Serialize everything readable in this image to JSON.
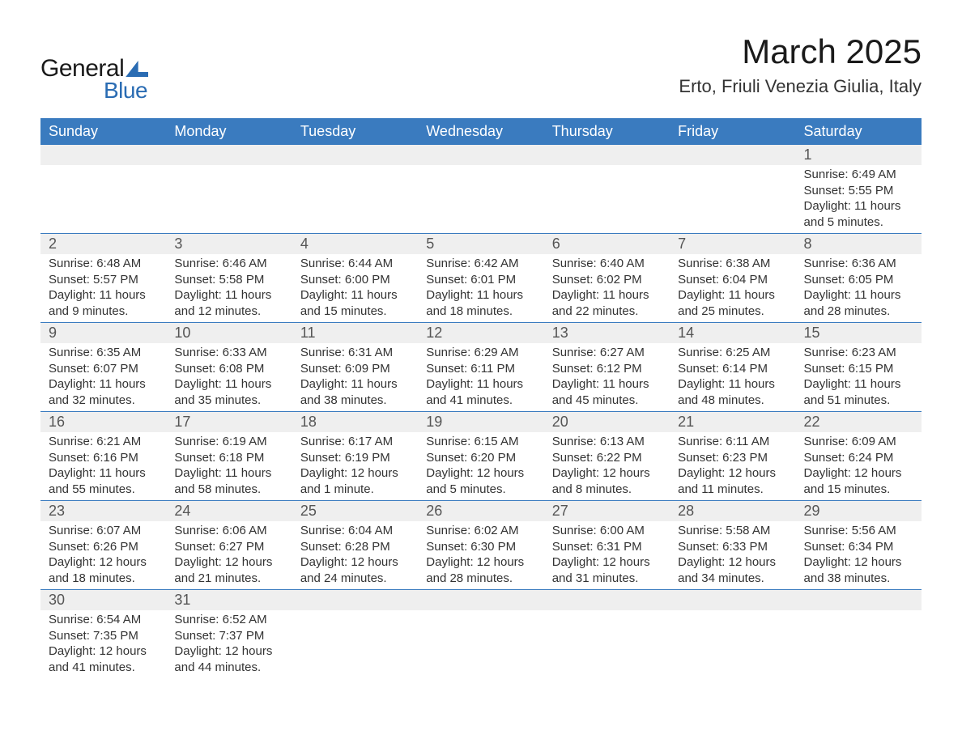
{
  "brand": {
    "word1": "General",
    "word2": "Blue",
    "accent_color": "#2a6cb3"
  },
  "title": "March 2025",
  "location": "Erto, Friuli Venezia Giulia, Italy",
  "colors": {
    "header_bg": "#3a7bbf",
    "header_text": "#ffffff",
    "daynum_bg": "#efefef",
    "row_divider": "#3a7bbf",
    "text": "#333333",
    "page_bg": "#ffffff"
  },
  "fonts": {
    "title_size_pt": 42,
    "location_size_pt": 22,
    "th_size_pt": 18,
    "daynum_size_pt": 18,
    "body_size_pt": 15
  },
  "dow": [
    "Sunday",
    "Monday",
    "Tuesday",
    "Wednesday",
    "Thursday",
    "Friday",
    "Saturday"
  ],
  "weeks": [
    [
      null,
      null,
      null,
      null,
      null,
      null,
      {
        "d": "1",
        "sunrise": "Sunrise: 6:49 AM",
        "sunset": "Sunset: 5:55 PM",
        "daylight": "Daylight: 11 hours and 5 minutes."
      }
    ],
    [
      {
        "d": "2",
        "sunrise": "Sunrise: 6:48 AM",
        "sunset": "Sunset: 5:57 PM",
        "daylight": "Daylight: 11 hours and 9 minutes."
      },
      {
        "d": "3",
        "sunrise": "Sunrise: 6:46 AM",
        "sunset": "Sunset: 5:58 PM",
        "daylight": "Daylight: 11 hours and 12 minutes."
      },
      {
        "d": "4",
        "sunrise": "Sunrise: 6:44 AM",
        "sunset": "Sunset: 6:00 PM",
        "daylight": "Daylight: 11 hours and 15 minutes."
      },
      {
        "d": "5",
        "sunrise": "Sunrise: 6:42 AM",
        "sunset": "Sunset: 6:01 PM",
        "daylight": "Daylight: 11 hours and 18 minutes."
      },
      {
        "d": "6",
        "sunrise": "Sunrise: 6:40 AM",
        "sunset": "Sunset: 6:02 PM",
        "daylight": "Daylight: 11 hours and 22 minutes."
      },
      {
        "d": "7",
        "sunrise": "Sunrise: 6:38 AM",
        "sunset": "Sunset: 6:04 PM",
        "daylight": "Daylight: 11 hours and 25 minutes."
      },
      {
        "d": "8",
        "sunrise": "Sunrise: 6:36 AM",
        "sunset": "Sunset: 6:05 PM",
        "daylight": "Daylight: 11 hours and 28 minutes."
      }
    ],
    [
      {
        "d": "9",
        "sunrise": "Sunrise: 6:35 AM",
        "sunset": "Sunset: 6:07 PM",
        "daylight": "Daylight: 11 hours and 32 minutes."
      },
      {
        "d": "10",
        "sunrise": "Sunrise: 6:33 AM",
        "sunset": "Sunset: 6:08 PM",
        "daylight": "Daylight: 11 hours and 35 minutes."
      },
      {
        "d": "11",
        "sunrise": "Sunrise: 6:31 AM",
        "sunset": "Sunset: 6:09 PM",
        "daylight": "Daylight: 11 hours and 38 minutes."
      },
      {
        "d": "12",
        "sunrise": "Sunrise: 6:29 AM",
        "sunset": "Sunset: 6:11 PM",
        "daylight": "Daylight: 11 hours and 41 minutes."
      },
      {
        "d": "13",
        "sunrise": "Sunrise: 6:27 AM",
        "sunset": "Sunset: 6:12 PM",
        "daylight": "Daylight: 11 hours and 45 minutes."
      },
      {
        "d": "14",
        "sunrise": "Sunrise: 6:25 AM",
        "sunset": "Sunset: 6:14 PM",
        "daylight": "Daylight: 11 hours and 48 minutes."
      },
      {
        "d": "15",
        "sunrise": "Sunrise: 6:23 AM",
        "sunset": "Sunset: 6:15 PM",
        "daylight": "Daylight: 11 hours and 51 minutes."
      }
    ],
    [
      {
        "d": "16",
        "sunrise": "Sunrise: 6:21 AM",
        "sunset": "Sunset: 6:16 PM",
        "daylight": "Daylight: 11 hours and 55 minutes."
      },
      {
        "d": "17",
        "sunrise": "Sunrise: 6:19 AM",
        "sunset": "Sunset: 6:18 PM",
        "daylight": "Daylight: 11 hours and 58 minutes."
      },
      {
        "d": "18",
        "sunrise": "Sunrise: 6:17 AM",
        "sunset": "Sunset: 6:19 PM",
        "daylight": "Daylight: 12 hours and 1 minute."
      },
      {
        "d": "19",
        "sunrise": "Sunrise: 6:15 AM",
        "sunset": "Sunset: 6:20 PM",
        "daylight": "Daylight: 12 hours and 5 minutes."
      },
      {
        "d": "20",
        "sunrise": "Sunrise: 6:13 AM",
        "sunset": "Sunset: 6:22 PM",
        "daylight": "Daylight: 12 hours and 8 minutes."
      },
      {
        "d": "21",
        "sunrise": "Sunrise: 6:11 AM",
        "sunset": "Sunset: 6:23 PM",
        "daylight": "Daylight: 12 hours and 11 minutes."
      },
      {
        "d": "22",
        "sunrise": "Sunrise: 6:09 AM",
        "sunset": "Sunset: 6:24 PM",
        "daylight": "Daylight: 12 hours and 15 minutes."
      }
    ],
    [
      {
        "d": "23",
        "sunrise": "Sunrise: 6:07 AM",
        "sunset": "Sunset: 6:26 PM",
        "daylight": "Daylight: 12 hours and 18 minutes."
      },
      {
        "d": "24",
        "sunrise": "Sunrise: 6:06 AM",
        "sunset": "Sunset: 6:27 PM",
        "daylight": "Daylight: 12 hours and 21 minutes."
      },
      {
        "d": "25",
        "sunrise": "Sunrise: 6:04 AM",
        "sunset": "Sunset: 6:28 PM",
        "daylight": "Daylight: 12 hours and 24 minutes."
      },
      {
        "d": "26",
        "sunrise": "Sunrise: 6:02 AM",
        "sunset": "Sunset: 6:30 PM",
        "daylight": "Daylight: 12 hours and 28 minutes."
      },
      {
        "d": "27",
        "sunrise": "Sunrise: 6:00 AM",
        "sunset": "Sunset: 6:31 PM",
        "daylight": "Daylight: 12 hours and 31 minutes."
      },
      {
        "d": "28",
        "sunrise": "Sunrise: 5:58 AM",
        "sunset": "Sunset: 6:33 PM",
        "daylight": "Daylight: 12 hours and 34 minutes."
      },
      {
        "d": "29",
        "sunrise": "Sunrise: 5:56 AM",
        "sunset": "Sunset: 6:34 PM",
        "daylight": "Daylight: 12 hours and 38 minutes."
      }
    ],
    [
      {
        "d": "30",
        "sunrise": "Sunrise: 6:54 AM",
        "sunset": "Sunset: 7:35 PM",
        "daylight": "Daylight: 12 hours and 41 minutes."
      },
      {
        "d": "31",
        "sunrise": "Sunrise: 6:52 AM",
        "sunset": "Sunset: 7:37 PM",
        "daylight": "Daylight: 12 hours and 44 minutes."
      },
      null,
      null,
      null,
      null,
      null
    ]
  ]
}
